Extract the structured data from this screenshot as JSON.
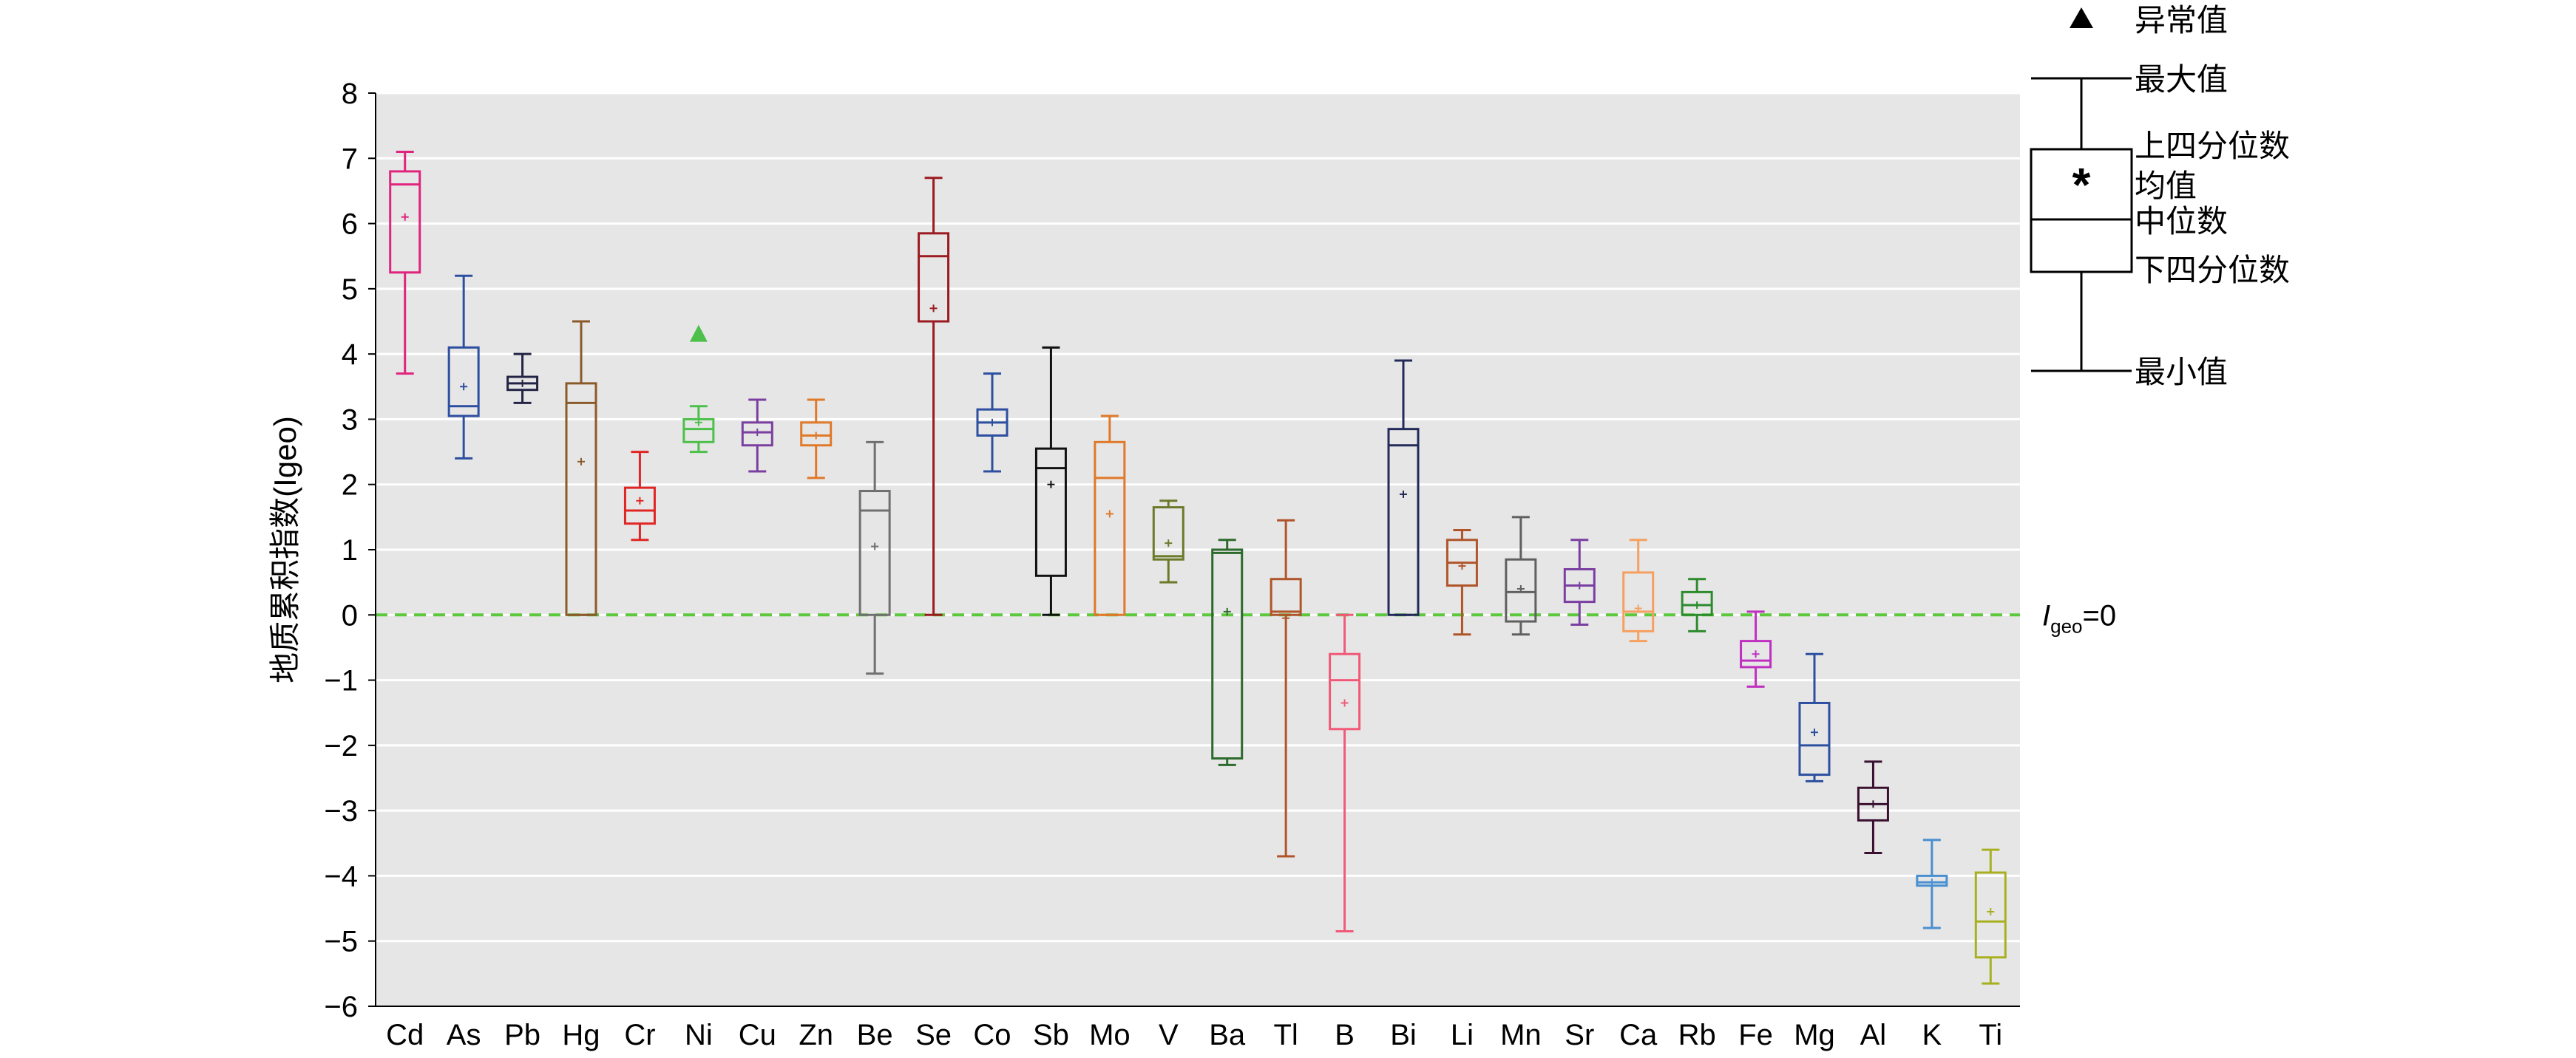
{
  "chart_data": {
    "type": "box",
    "ylabel": "地质累积指数(Igeo)",
    "ylim": [
      -6,
      8
    ],
    "yticks": [
      -6,
      -5,
      -4,
      -3,
      -2,
      -1,
      0,
      1,
      2,
      3,
      4,
      5,
      6,
      7,
      8
    ],
    "grid": true,
    "reference_line": {
      "y": 0,
      "label_main": "I",
      "label_sub": "geo",
      "label_tail": "=0",
      "color": "#5cc83c",
      "style": "dashed"
    },
    "legend": {
      "placement": "right",
      "outlier": "异常值",
      "max": "最大值",
      "q3": "上四分位数",
      "mean": "均值",
      "median": "中位数",
      "q1": "下四分位数",
      "min": "最小值",
      "mean_symbol": "*"
    },
    "boxes": [
      {
        "name": "Cd",
        "color": "#e0247e",
        "min": 3.7,
        "q1": 5.25,
        "median": 6.6,
        "q3": 6.8,
        "max": 7.1,
        "mean": 6.1
      },
      {
        "name": "As",
        "color": "#2d4fa0",
        "min": 2.4,
        "q1": 3.05,
        "median": 3.2,
        "q3": 4.1,
        "max": 5.2,
        "mean": 3.5
      },
      {
        "name": "Pb",
        "color": "#232445",
        "min": 3.25,
        "q1": 3.45,
        "median": 3.55,
        "q3": 3.65,
        "max": 4.0,
        "mean": 3.55
      },
      {
        "name": "Hg",
        "color": "#8b5a2b",
        "min": 0.0,
        "q1": 0.0,
        "median": 3.25,
        "q3": 3.55,
        "max": 4.5,
        "mean": 2.35
      },
      {
        "name": "Cr",
        "color": "#e02525",
        "min": 1.15,
        "q1": 1.4,
        "median": 1.6,
        "q3": 1.95,
        "max": 2.5,
        "mean": 1.75
      },
      {
        "name": "Ni",
        "color": "#4cc04a",
        "min": 2.5,
        "q1": 2.65,
        "median": 2.85,
        "q3": 3.0,
        "max": 3.2,
        "mean": 2.95,
        "outliers": [
          4.3
        ]
      },
      {
        "name": "Cu",
        "color": "#7a3fa0",
        "min": 2.2,
        "q1": 2.6,
        "median": 2.8,
        "q3": 2.95,
        "max": 3.3,
        "mean": 2.8
      },
      {
        "name": "Zn",
        "color": "#e0792a",
        "min": 2.1,
        "q1": 2.6,
        "median": 2.75,
        "q3": 2.95,
        "max": 3.3,
        "mean": 2.75
      },
      {
        "name": "Be",
        "color": "#707070",
        "min": -0.9,
        "q1": 0.0,
        "median": 1.6,
        "q3": 1.9,
        "max": 2.65,
        "mean": 1.05
      },
      {
        "name": "Se",
        "color": "#9b1b20",
        "min": 0.0,
        "q1": 4.5,
        "median": 5.5,
        "q3": 5.85,
        "max": 6.7,
        "mean": 4.7
      },
      {
        "name": "Co",
        "color": "#2d4fa0",
        "min": 2.2,
        "q1": 2.75,
        "median": 2.95,
        "q3": 3.15,
        "max": 3.7,
        "mean": 2.95
      },
      {
        "name": "Sb",
        "color": "#111111",
        "min": 0.0,
        "q1": 0.6,
        "median": 2.25,
        "q3": 2.55,
        "max": 4.1,
        "mean": 2.0
      },
      {
        "name": "Mo",
        "color": "#e0792a",
        "min": 0.0,
        "q1": 0.0,
        "median": 2.1,
        "q3": 2.65,
        "max": 3.05,
        "mean": 1.55
      },
      {
        "name": "V",
        "color": "#6b7a2a",
        "min": 0.5,
        "q1": 0.85,
        "median": 0.9,
        "q3": 1.65,
        "max": 1.75,
        "mean": 1.1
      },
      {
        "name": "Ba",
        "color": "#2d6b2d",
        "min": -2.3,
        "q1": -2.2,
        "median": 0.95,
        "q3": 1.0,
        "max": 1.15,
        "mean": 0.05
      },
      {
        "name": "Tl",
        "color": "#b0552a",
        "min": -3.7,
        "q1": 0.0,
        "median": 0.05,
        "q3": 0.55,
        "max": 1.45,
        "mean": -0.05
      },
      {
        "name": "B",
        "color": "#f05a78",
        "min": -4.85,
        "q1": -1.75,
        "median": -1.0,
        "q3": -0.6,
        "max": 0.0,
        "mean": -1.35
      },
      {
        "name": "Bi",
        "color": "#232a5a",
        "min": 0.0,
        "q1": 0.0,
        "median": 2.6,
        "q3": 2.85,
        "max": 3.9,
        "mean": 1.85
      },
      {
        "name": "Li",
        "color": "#b0552a",
        "min": -0.3,
        "q1": 0.45,
        "median": 0.8,
        "q3": 1.15,
        "max": 1.3,
        "mean": 0.75
      },
      {
        "name": "Mn",
        "color": "#606060",
        "min": -0.3,
        "q1": -0.1,
        "median": 0.35,
        "q3": 0.85,
        "max": 1.5,
        "mean": 0.4
      },
      {
        "name": "Sr",
        "color": "#7a3fa0",
        "min": -0.15,
        "q1": 0.2,
        "median": 0.45,
        "q3": 0.7,
        "max": 1.15,
        "mean": 0.45
      },
      {
        "name": "Ca",
        "color": "#f5a060",
        "min": -0.4,
        "q1": -0.25,
        "median": 0.05,
        "q3": 0.65,
        "max": 1.15,
        "mean": 0.1
      },
      {
        "name": "Rb",
        "color": "#2d8b2d",
        "min": -0.25,
        "q1": 0.0,
        "median": 0.15,
        "q3": 0.35,
        "max": 0.55,
        "mean": 0.15
      },
      {
        "name": "Fe",
        "color": "#c030c0",
        "min": -1.1,
        "q1": -0.8,
        "median": -0.7,
        "q3": -0.4,
        "max": 0.05,
        "mean": -0.6
      },
      {
        "name": "Mg",
        "color": "#2d4fa0",
        "min": -2.55,
        "q1": -2.45,
        "median": -2.0,
        "q3": -1.35,
        "max": -0.6,
        "mean": -1.8
      },
      {
        "name": "Al",
        "color": "#3a1030",
        "min": -3.65,
        "q1": -3.15,
        "median": -2.9,
        "q3": -2.65,
        "max": -2.25,
        "mean": -2.9
      },
      {
        "name": "K",
        "color": "#4a90d0",
        "min": -4.8,
        "q1": -4.15,
        "median": -4.1,
        "q3": -4.0,
        "max": -3.45,
        "mean": -4.1
      },
      {
        "name": "Ti",
        "color": "#a8b020",
        "min": -5.65,
        "q1": -5.25,
        "median": -4.7,
        "q3": -3.95,
        "max": -3.6,
        "mean": -4.55
      }
    ]
  }
}
